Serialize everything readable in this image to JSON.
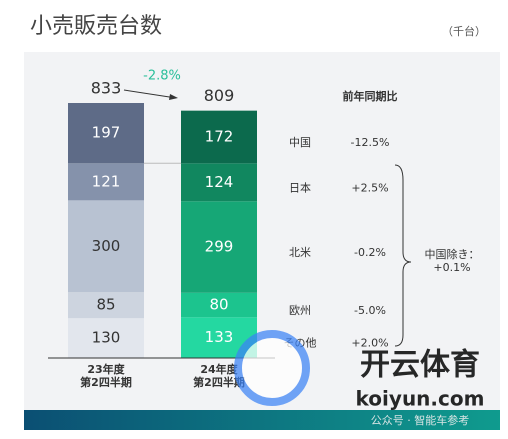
{
  "chart_data": {
    "type": "stacked-bar",
    "title": "小売販売台数",
    "unit": "（千台）",
    "categories": [
      "23年度\n第2四半期",
      "24年度\n第2四半期"
    ],
    "totals": [
      833,
      809
    ],
    "change_label": "-2.8%",
    "comparison_header": "前年同期比",
    "series": [
      {
        "name": "その他",
        "colors": [
          "#e2e6ed",
          "#24d8a1"
        ],
        "values": [
          130,
          133
        ],
        "change": "+2.0%"
      },
      {
        "name": "欧州",
        "colors": [
          "#cdd4df",
          "#1cc48e"
        ],
        "values": [
          85,
          80
        ],
        "change": "-5.0%"
      },
      {
        "name": "北米",
        "colors": [
          "#b8c2d2",
          "#16a776"
        ],
        "values": [
          300,
          299
        ],
        "change": "-0.2%"
      },
      {
        "name": "日本",
        "colors": [
          "#8592ab",
          "#11875f"
        ],
        "values": [
          121,
          124
        ],
        "change": "+2.5%"
      },
      {
        "name": "中国",
        "colors": [
          "#5e6b87",
          "#0c6a4d"
        ],
        "values": [
          197,
          172
        ],
        "change": "-12.5%"
      }
    ],
    "bracket_label": "中国除き：\n+0.1%",
    "watermark": {
      "brand": "开云体育",
      "site": "koiyun.com",
      "account": "公众号 · 智能车参考"
    }
  }
}
